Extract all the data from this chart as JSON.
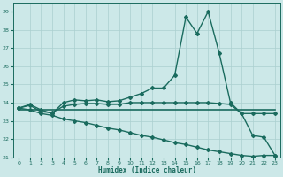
{
  "bg_color": "#cce8e8",
  "grid_color": "#aacfcf",
  "line_color": "#1a6b5e",
  "xlabel": "Humidex (Indice chaleur)",
  "ylim": [
    21,
    29.5
  ],
  "xlim": [
    -0.5,
    23.5
  ],
  "yticks": [
    21,
    22,
    23,
    24,
    25,
    26,
    27,
    28,
    29
  ],
  "xticks": [
    0,
    1,
    2,
    3,
    4,
    5,
    6,
    7,
    8,
    9,
    10,
    11,
    12,
    13,
    14,
    15,
    16,
    17,
    18,
    19,
    20,
    21,
    22,
    23
  ],
  "lines": [
    {
      "x": [
        0,
        1,
        2,
        3,
        4,
        5,
        6,
        7,
        8,
        9,
        10,
        11,
        12,
        13,
        14,
        15,
        16,
        17,
        18,
        19,
        20,
        21,
        22,
        23
      ],
      "y": [
        23.7,
        23.9,
        23.6,
        23.4,
        24.0,
        24.15,
        24.1,
        24.15,
        24.05,
        24.1,
        24.3,
        24.5,
        24.8,
        24.8,
        25.5,
        28.7,
        27.8,
        29.0,
        26.7,
        24.0,
        23.4,
        22.2,
        22.1,
        21.1
      ],
      "marker": "D",
      "ms": 2.0,
      "lw": 1.0,
      "ls": "-"
    },
    {
      "x": [
        0,
        1,
        2,
        3,
        4,
        5,
        6,
        7,
        8,
        9,
        10,
        11,
        12,
        13,
        14,
        15,
        16,
        17,
        18,
        19,
        20,
        21,
        22,
        23
      ],
      "y": [
        23.6,
        23.6,
        23.6,
        23.6,
        23.6,
        23.6,
        23.6,
        23.6,
        23.6,
        23.6,
        23.6,
        23.6,
        23.6,
        23.6,
        23.6,
        23.6,
        23.6,
        23.6,
        23.6,
        23.6,
        23.6,
        23.6,
        23.6,
        23.6
      ],
      "marker": null,
      "ms": 0,
      "lw": 1.2,
      "ls": "-"
    },
    {
      "x": [
        0,
        1,
        2,
        3,
        4,
        5,
        6,
        7,
        8,
        9,
        10,
        11,
        12,
        13,
        14,
        15,
        16,
        17,
        18,
        19,
        20,
        21,
        22,
        23
      ],
      "y": [
        23.7,
        23.85,
        23.5,
        23.45,
        23.8,
        23.9,
        23.95,
        23.95,
        23.9,
        23.9,
        24.0,
        24.0,
        24.0,
        24.0,
        24.0,
        24.0,
        24.0,
        24.0,
        23.95,
        23.9,
        23.4,
        23.4,
        23.4,
        23.4
      ],
      "marker": "D",
      "ms": 2.0,
      "lw": 1.0,
      "ls": "-"
    },
    {
      "x": [
        0,
        1,
        2,
        3,
        4,
        5,
        6,
        7,
        8,
        9,
        10,
        11,
        12,
        13,
        14,
        15,
        16,
        17,
        18,
        19,
        20,
        21,
        22,
        23
      ],
      "y": [
        23.7,
        23.6,
        23.4,
        23.3,
        23.1,
        23.0,
        22.9,
        22.75,
        22.6,
        22.5,
        22.35,
        22.2,
        22.1,
        21.95,
        21.8,
        21.7,
        21.55,
        21.4,
        21.3,
        21.2,
        21.1,
        21.05,
        21.1,
        21.1
      ],
      "marker": "D",
      "ms": 2.0,
      "lw": 1.0,
      "ls": "-"
    }
  ]
}
